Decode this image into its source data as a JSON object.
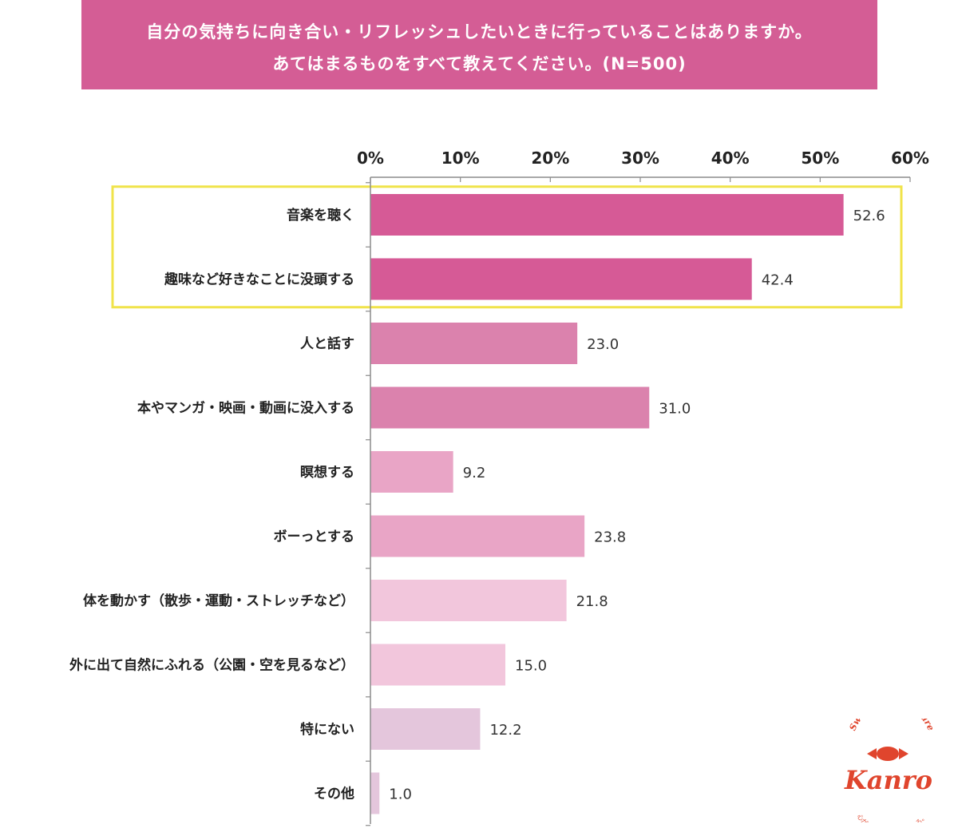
{
  "title": {
    "line1": "自分の気持ちに向き合い・リフレッシュしたいときに行っていることはありますか。",
    "line2": "あてはまるものをすべて教えてください。(N=500)"
  },
  "chart_data": {
    "type": "bar",
    "orientation": "horizontal",
    "categories": [
      "音楽を聴く",
      "趣味など好きなことに没頭する",
      "人と話す",
      "本やマンガ・映画・動画に没入する",
      "瞑想する",
      "ボーっとする",
      "体を動かす（散歩・運動・ストレッチなど）",
      "外に出て自然にふれる（公園・空を見るなど）",
      "特にない",
      "その他"
    ],
    "values": [
      52.6,
      42.4,
      23.0,
      31.0,
      9.2,
      23.8,
      21.8,
      15.0,
      12.2,
      1.0
    ],
    "value_labels": [
      "52.6",
      "42.4",
      "23.0",
      "31.0",
      "9.2",
      "23.8",
      "21.8",
      "15.0",
      "12.2",
      "1.0"
    ],
    "bar_colors": [
      "#d65a96",
      "#d65a96",
      "#db82ad",
      "#db82ad",
      "#e9a5c6",
      "#e9a5c6",
      "#f2c6dc",
      "#f2c6dc",
      "#e4c6dc",
      "#e4c6dc"
    ],
    "xlim": [
      0,
      60
    ],
    "ticks": [
      0,
      10,
      20,
      30,
      40,
      50,
      60
    ],
    "tick_labels": [
      "0%",
      "10%",
      "20%",
      "30%",
      "40%",
      "50%",
      "60%"
    ],
    "highlight_categories": [
      "音楽を聴く",
      "趣味など好きなことに没頭する"
    ],
    "highlight_color": "#f0e34a",
    "grid": false,
    "legend": "none"
  },
  "logo": {
    "tagline": "Sweeten the Future",
    "brand": "Kanro",
    "slogan": "心がひとつぶ、大きくなる。",
    "color": "#e0452d"
  }
}
